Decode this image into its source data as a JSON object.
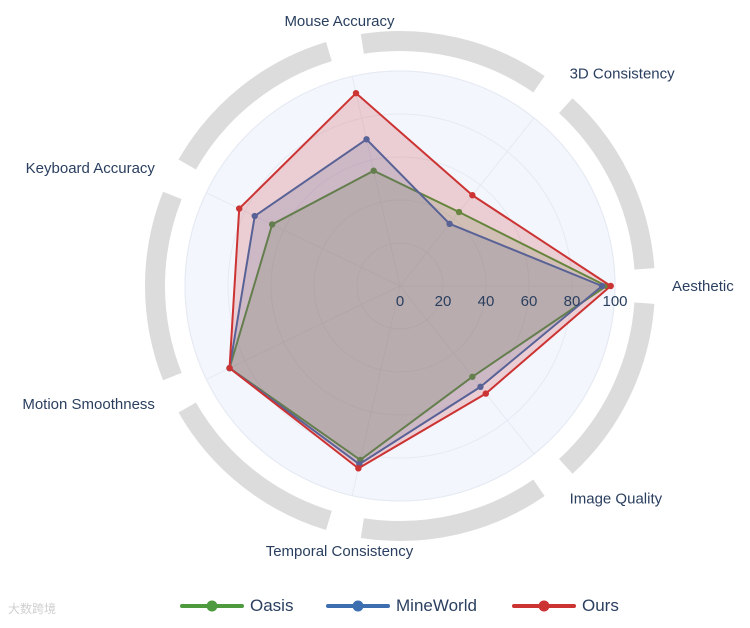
{
  "chart_data": {
    "type": "radar",
    "title": "",
    "axes": [
      "Aesthetic",
      "3D Consistency",
      "Mouse Accuracy",
      "Keyboard Accuracy",
      "Motion Smoothness",
      "Temporal Consistency",
      "Image Quality"
    ],
    "radial_range": [
      0,
      100
    ],
    "radial_ticks": [
      "0",
      "20",
      "40",
      "60",
      "80",
      "100"
    ],
    "radial_tick_values": [
      0,
      20,
      40,
      60,
      80,
      100
    ],
    "grid": true,
    "legend_position": "bottom",
    "series": [
      {
        "name": "Oasis",
        "color": "#4e9a3f",
        "fill": "rgba(78,154,63,0.20)",
        "values": [
          96,
          44,
          55,
          66,
          88,
          83,
          54
        ]
      },
      {
        "name": "MineWorld",
        "color": "#3d6fb0",
        "fill": "rgba(61,111,176,0.20)",
        "values": [
          94,
          37,
          70,
          75,
          88,
          85,
          60
        ]
      },
      {
        "name": "Ours",
        "color": "#cc3333",
        "fill": "rgba(204,51,51,0.20)",
        "values": [
          98,
          54,
          92,
          83,
          88,
          87,
          64
        ]
      }
    ]
  },
  "watermark": "大数跨境"
}
